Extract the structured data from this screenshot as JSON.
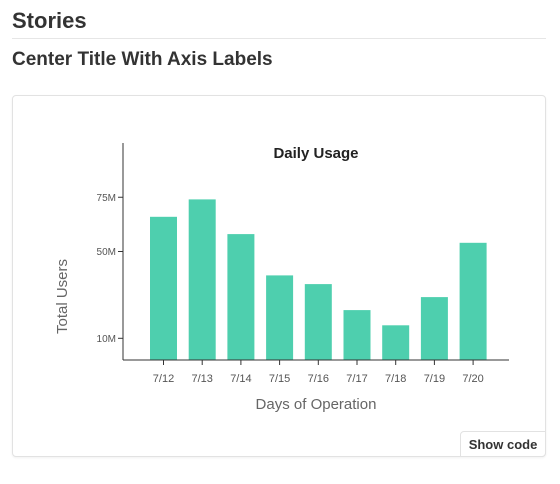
{
  "page": {
    "title": "Stories",
    "section_title": "Center Title With Axis Labels"
  },
  "story": {
    "show_code_label": "Show code"
  },
  "colors": {
    "bar": "#4ecfae",
    "axis": "#333333",
    "tick_text": "#555555",
    "title_text": "#222222",
    "axis_label_text": "#666666"
  },
  "chart_data": {
    "type": "bar",
    "title": "Daily Usage",
    "xlabel": "Days of Operation",
    "ylabel": "Total Users",
    "categories": [
      "7/12",
      "7/13",
      "7/14",
      "7/15",
      "7/16",
      "7/17",
      "7/18",
      "7/19",
      "7/20"
    ],
    "values": [
      66,
      74,
      58,
      39,
      35,
      23,
      16,
      29,
      54
    ],
    "y_ticks": [
      {
        "value": 10,
        "label": "10M"
      },
      {
        "value": 50,
        "label": "50M"
      },
      {
        "value": 75,
        "label": "75M"
      }
    ],
    "ylim": [
      0,
      100
    ],
    "grid": false,
    "legend": "none"
  }
}
